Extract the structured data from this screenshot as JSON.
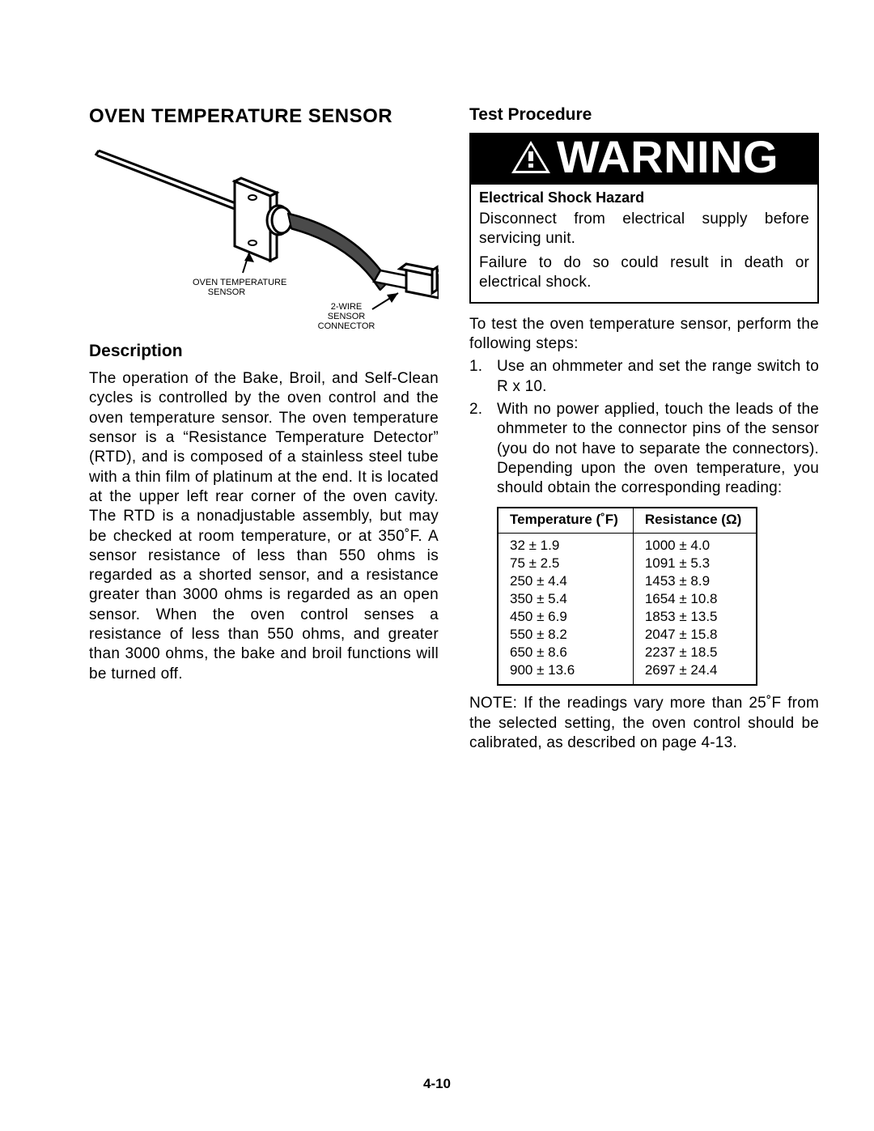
{
  "left": {
    "title": "OVEN TEMPERATURE SENSOR",
    "diagram": {
      "label_sensor": "OVEN TEMPERATURE\nSENSOR",
      "label_connector": "2-WIRE\nSENSOR\nCONNECTOR"
    },
    "desc_heading": "Description",
    "desc_body": "The operation of the Bake, Broil, and Self-Clean cycles is controlled by the oven control and the oven temperature sensor. The oven temperature sensor is a “Resistance Temperature Detector” (RTD), and is composed of a stainless steel tube with a thin film of platinum at the end. It is located at the upper left rear corner of the oven cavity. The RTD is a nonadjustable assembly, but may be checked at room temperature, or at 350˚F. A sensor resistance of less than 550 ohms is regarded as a shorted sensor, and a resistance greater than 3000 ohms is regarded as an open sensor. When the oven control senses a resistance of less than 550 ohms, and greater than 3000 ohms, the bake and broil functions will be turned off."
  },
  "right": {
    "proc_heading": "Test Procedure",
    "warning_word": "WARNING",
    "hazard_title": "Electrical Shock Hazard",
    "hazard_p1": "Disconnect from electrical supply before servicing unit.",
    "hazard_p2": "Failure to do so could result in death or electrical shock.",
    "intro": "To test the oven temperature sensor, perform the following steps:",
    "steps": [
      "Use an ohmmeter and set the range switch to R x 10.",
      "With no power applied, touch the leads of the ohmmeter to the connector pins of the sensor (you do not have to separate the connectors). Depending upon the oven temperature, you should obtain the corresponding reading:"
    ],
    "table": {
      "col1": "Temperature (˚F)",
      "col2": "Resistance (Ω)",
      "rows": [
        [
          "32 ± 1.9",
          "1000 ± 4.0"
        ],
        [
          "75 ± 2.5",
          "1091 ± 5.3"
        ],
        [
          "250 ± 4.4",
          "1453 ± 8.9"
        ],
        [
          "350 ± 5.4",
          "1654 ± 10.8"
        ],
        [
          "450 ± 6.9",
          "1853 ± 13.5"
        ],
        [
          "550 ± 8.2",
          "2047 ± 15.8"
        ],
        [
          "650 ± 8.6",
          "2237 ± 18.5"
        ],
        [
          "900 ± 13.6",
          "2697 ± 24.4"
        ]
      ]
    },
    "note": "NOTE: If the readings vary more than 25˚F from the selected setting, the oven control should be calibrated, as described on page 4-13."
  },
  "page_number": "4-10"
}
